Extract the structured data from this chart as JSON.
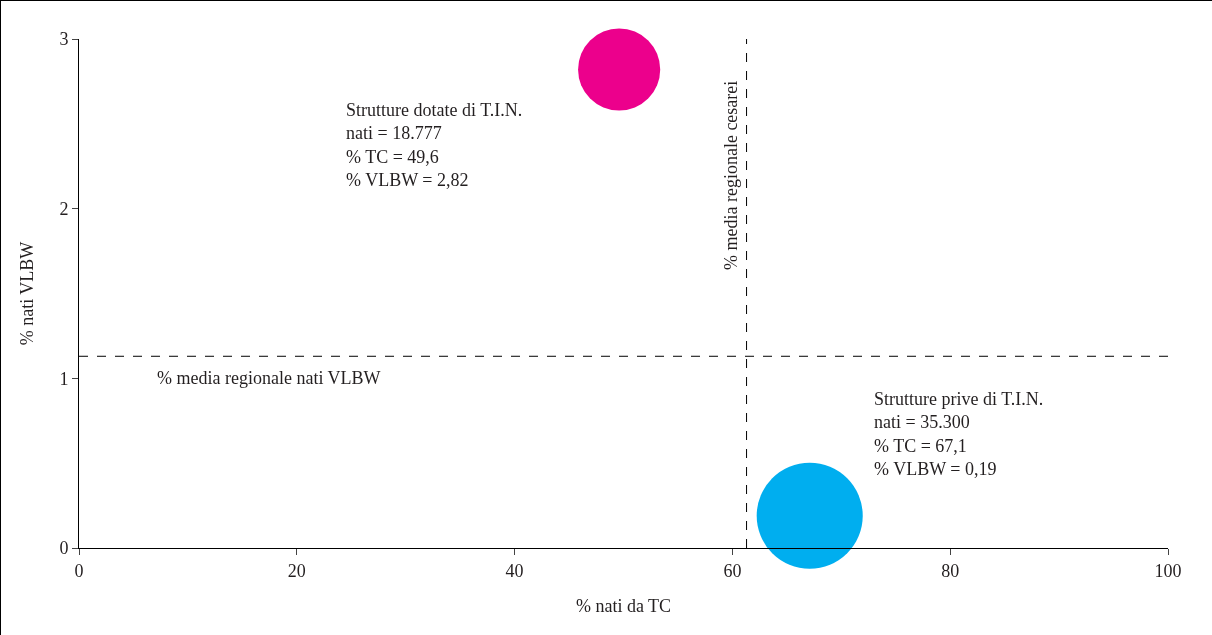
{
  "chart_data": {
    "type": "bubble",
    "xlabel": "% nati da TC",
    "ylabel": "% nati VLBW",
    "x": [
      49.6,
      67.1
    ],
    "values": [
      2.82,
      0.19
    ],
    "sizes": [
      0.6,
      1
    ],
    "colors": [
      "#ec008c",
      "#00aeef"
    ],
    "xlim": [
      0,
      100
    ],
    "xticks": [
      0,
      20,
      40,
      60,
      80,
      100
    ],
    "ylim": [
      0,
      3
    ],
    "yticks": [
      0,
      1,
      2,
      3
    ],
    "grid": false,
    "ref_lines": [
      {
        "axis": "x",
        "value": 61.3,
        "label": "% media regionale cesarei",
        "color": "#000000",
        "line_style": "dashed"
      },
      {
        "axis": "y",
        "value": 1.13,
        "label": "% media regionale nati VLBW",
        "color": "#000000",
        "line_style": "dashed"
      }
    ],
    "annotations": [
      "Strutture dotate di T.I.N.\nnati = 18.777\n% TC = 49,6\n% VLBW = 2,82",
      "Strutture prive di T.I.N.\nnati = 35.300\n% TC = 67,1\n% VLBW = 0,19"
    ]
  }
}
